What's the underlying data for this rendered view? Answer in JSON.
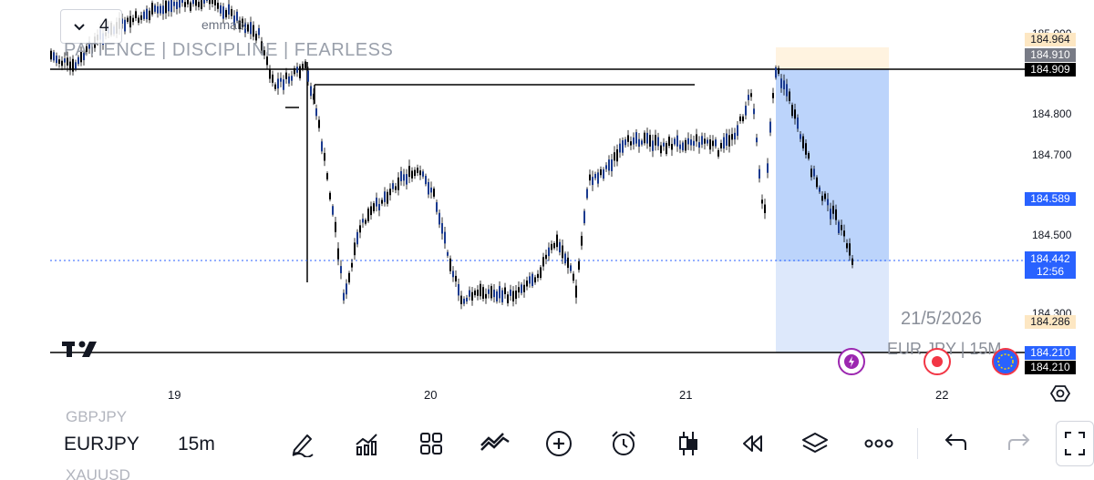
{
  "chart": {
    "interval_number": "4",
    "username": "emmafx",
    "watermark_title": "PATIENCE  |  DISCIPLINE  |  FEARLESS",
    "watermark_date": "21/5/2026",
    "watermark_symbol": "EUR JPY | 15M",
    "line_color": "#000000",
    "candle_color": "#1a3a8f",
    "zone_color": "#bcd4fb",
    "current_price_line_color": "#2962ff"
  },
  "price_scale": {
    "ticks": [
      "185.000",
      "184.800",
      "184.700",
      "184.500",
      "184.300"
    ],
    "labels": {
      "zone_top": "184.964",
      "marker_gray": "184.910",
      "resistance": "184.909",
      "blue_level": "184.589",
      "last_price": "184.442",
      "countdown": "12:56",
      "orange_level": "184.286",
      "support_black": "184.210",
      "support_blue": "184.210"
    }
  },
  "time_axis": {
    "ticks": [
      "19",
      "20",
      "21",
      "22"
    ]
  },
  "floating": {
    "lightning": "lightning-icon",
    "record": "record-icon",
    "globe": "globe-icon"
  },
  "toolbar": {
    "symbol_prev": "GBPJPY",
    "symbol_current": "EURJPY",
    "symbol_next": "XAUUSD",
    "interval": "15m",
    "icons": [
      "pencil-icon",
      "indicators-icon",
      "grid-icon",
      "compare-icon",
      "add-icon",
      "alarm-icon",
      "candle-icon",
      "replay-icon",
      "layers-icon",
      "more-icon",
      "undo-icon",
      "redo-icon"
    ]
  }
}
